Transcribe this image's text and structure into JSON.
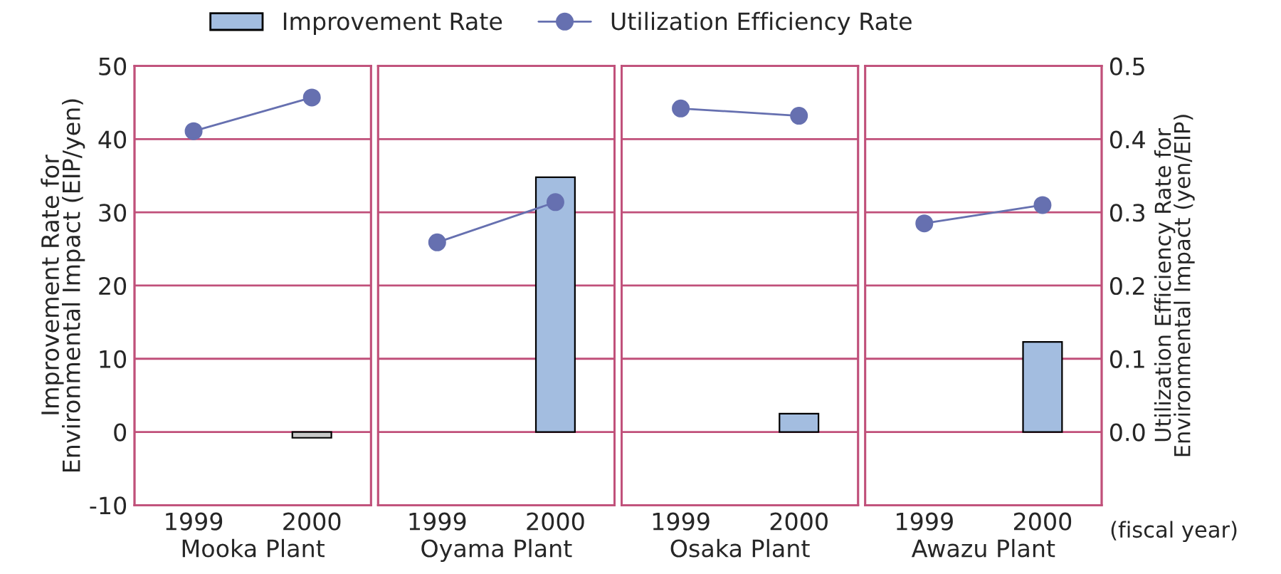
{
  "chart_data": [
    {
      "type": "bar",
      "categories": [
        "1999",
        "2000"
      ],
      "xlabel": "Mooka Plant",
      "ylabel": "Improvement Rate for\nEnvironmental Impact (EIP/yen)",
      "ylim": [
        -10,
        50
      ],
      "yticks": [
        -10,
        0,
        10,
        20,
        30,
        40,
        50
      ],
      "y2lim": [
        -0.1,
        0.5
      ],
      "grid": "y",
      "tick_labels": "xy",
      "series": [
        {
          "type": "bar",
          "color": "#a3bde0",
          "colors": [
            "#a3bde0",
            "#c8c8c8"
          ],
          "values": [
            null,
            -0.8
          ]
        },
        {
          "type": "line",
          "axis": "y2",
          "color": "#6670b0",
          "marker": "circle",
          "values": [
            0.411,
            0.457
          ]
        }
      ]
    },
    {
      "type": "bar",
      "categories": [
        "1999",
        "2000"
      ],
      "xlabel": "Oyama Plant",
      "ylim": [
        -10,
        50
      ],
      "yticks": [
        -10,
        0,
        10,
        20,
        30,
        40,
        50
      ],
      "y2lim": [
        -0.1,
        0.5
      ],
      "grid": "y",
      "legend": "top",
      "tick_labels": "x",
      "series": [
        {
          "type": "bar",
          "name": "Improvement Rate",
          "color": "#a3bde0",
          "values": [
            null,
            34.8
          ]
        },
        {
          "type": "line",
          "name": "Utilization Efficiency Rate",
          "axis": "y2",
          "color": "#6670b0",
          "marker": "circle",
          "values": [
            0.259,
            0.314
          ]
        }
      ]
    },
    {
      "type": "bar",
      "categories": [
        "1999",
        "2000"
      ],
      "xlabel": "Osaka Plant",
      "ylim": [
        -10,
        50
      ],
      "yticks": [
        -10,
        0,
        10,
        20,
        30,
        40,
        50
      ],
      "y2lim": [
        -0.1,
        0.5
      ],
      "grid": "y",
      "tick_labels": "x",
      "series": [
        {
          "type": "bar",
          "color": "#a3bde0",
          "values": [
            null,
            2.5
          ]
        },
        {
          "type": "line",
          "axis": "y2",
          "color": "#6670b0",
          "marker": "circle",
          "values": [
            0.442,
            0.432
          ]
        }
      ]
    },
    {
      "type": "bar",
      "categories": [
        "1999",
        "2000"
      ],
      "xlabel": "Awazu Plant",
      "y2label": "Utilization Efficiency Rate for\nEnvironmental Impact (yen/EIP)",
      "annotations": [
        "(fiscal year)"
      ],
      "ylim": [
        -10,
        50
      ],
      "y2lim": [
        -0.1,
        0.5
      ],
      "y2ticks": [
        {
          "value": 0,
          "label": "0.0"
        },
        {
          "value": 0.1,
          "label": "0.1"
        },
        {
          "value": 0.2,
          "label": "0.2"
        },
        {
          "value": 0.3,
          "label": "0.3"
        },
        {
          "value": 0.4,
          "label": "0.4"
        },
        {
          "value": 0.5,
          "label": "0.5"
        }
      ],
      "grid": "y",
      "tick_labels": "xy2",
      "series": [
        {
          "type": "bar",
          "color": "#a3bde0",
          "values": [
            null,
            12.3
          ]
        },
        {
          "type": "line",
          "axis": "y2",
          "color": "#6670b0",
          "marker": "circle",
          "values": [
            0.285,
            0.31
          ]
        }
      ]
    }
  ]
}
